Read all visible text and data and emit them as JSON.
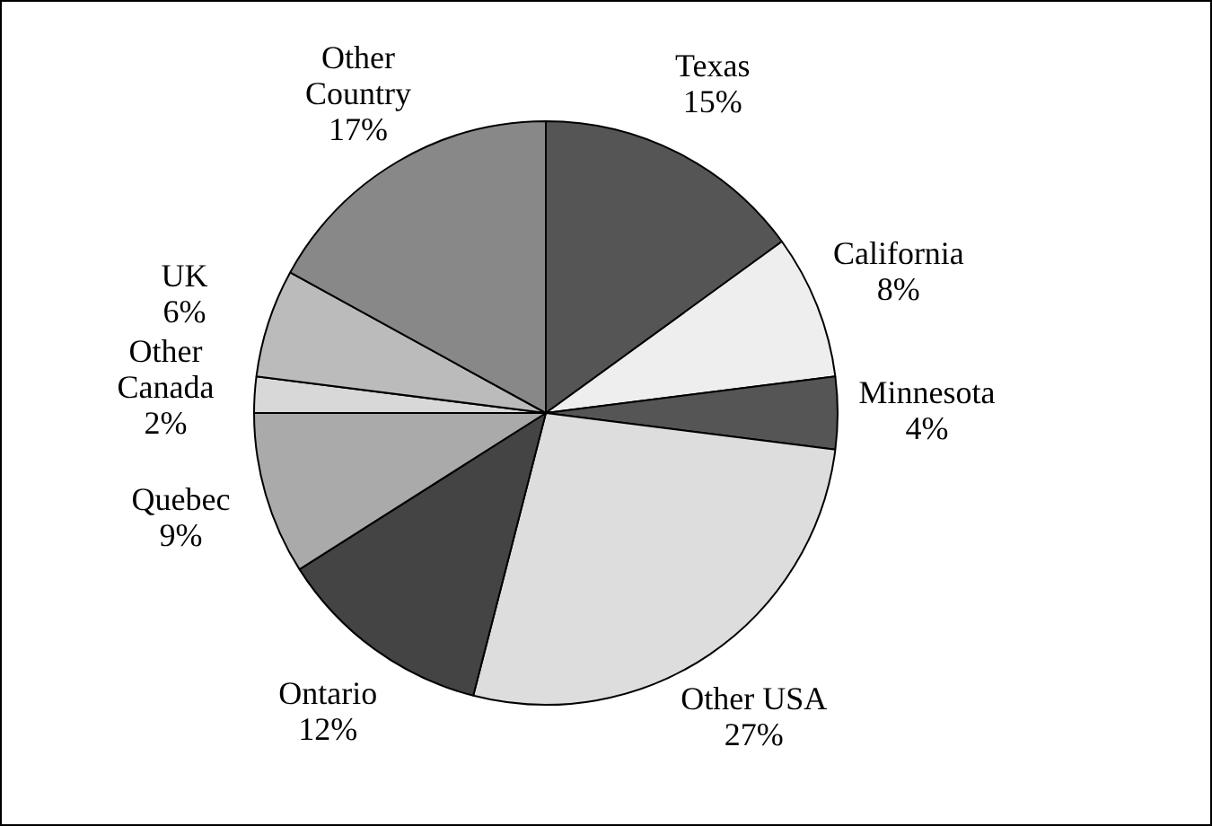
{
  "chart_data": {
    "type": "pie",
    "categories": [
      "Texas",
      "California",
      "Minnesota",
      "Other USA",
      "Ontario",
      "Quebec",
      "Other Canada",
      "UK",
      "Other Country"
    ],
    "values": [
      15,
      8,
      4,
      27,
      12,
      9,
      2,
      6,
      17
    ],
    "value_labels": [
      "15%",
      "8%",
      "4%",
      "27%",
      "12%",
      "9%",
      "2%",
      "6%",
      "17%"
    ],
    "colors": [
      "#555555",
      "#eeeeee",
      "#555555",
      "#dddddd",
      "#444444",
      "#aaaaaa",
      "#d8d8d8",
      "#bbbbbb",
      "#888888"
    ],
    "legend": false
  }
}
